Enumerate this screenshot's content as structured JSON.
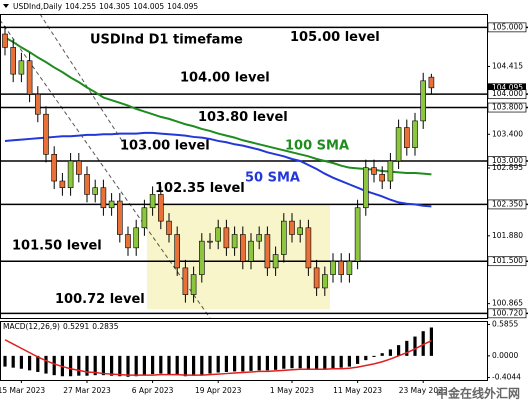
{
  "chart_data": {
    "type": "candlestick",
    "symbol": "USDInd,Daily",
    "title": "USDInd D1 timefame",
    "watermark": "中金在线外汇网",
    "categories": [
      null,
      null,
      "15 Mar 2023",
      null,
      null,
      null,
      null,
      null,
      null,
      null,
      "27 Mar 2023",
      null,
      null,
      null,
      null,
      null,
      null,
      null,
      "6 Apr 2023",
      null,
      null,
      null,
      null,
      null,
      null,
      null,
      "19 Apr 2023",
      null,
      null,
      null,
      null,
      null,
      null,
      null,
      null,
      "1 May 2023",
      null,
      null,
      null,
      null,
      null,
      null,
      null,
      "11 May 2023",
      null,
      null,
      null,
      null,
      null,
      null,
      null,
      "23 May 2023",
      null
    ],
    "open": [
      104.9,
      104.7,
      104.3,
      104.5,
      104.0,
      103.7,
      103.1,
      102.7,
      102.6,
      103.0,
      102.8,
      102.5,
      102.6,
      102.3,
      102.4,
      101.9,
      101.7,
      102.0,
      102.3,
      102.5,
      102.1,
      101.9,
      101.4,
      101.0,
      101.3,
      101.8,
      101.8,
      102.0,
      101.7,
      101.9,
      101.5,
      101.8,
      101.9,
      101.4,
      101.6,
      102.1,
      101.9,
      102.0,
      101.4,
      101.1,
      101.3,
      101.5,
      101.3,
      101.5,
      102.3,
      102.9,
      102.8,
      102.7,
      103.0,
      103.5,
      103.2,
      103.6,
      104.255
    ],
    "high": [
      105.02,
      104.82,
      104.62,
      104.62,
      104.12,
      103.82,
      103.22,
      102.82,
      103.12,
      103.12,
      102.92,
      102.72,
      102.72,
      102.52,
      102.52,
      102.02,
      102.12,
      102.42,
      102.62,
      102.62,
      102.22,
      102.02,
      101.52,
      101.42,
      101.92,
      101.92,
      102.12,
      102.12,
      102.02,
      102.02,
      101.92,
      102.02,
      102.02,
      101.72,
      102.22,
      102.22,
      102.12,
      102.12,
      101.52,
      101.42,
      101.62,
      101.62,
      101.62,
      102.42,
      103.02,
      103.02,
      102.92,
      103.12,
      103.62,
      103.62,
      103.72,
      104.32,
      104.305
    ],
    "low": [
      104.58,
      104.18,
      104.18,
      103.88,
      103.58,
      102.98,
      102.58,
      102.48,
      102.48,
      102.68,
      102.38,
      102.38,
      102.18,
      102.18,
      101.78,
      101.58,
      101.58,
      101.88,
      102.18,
      101.98,
      101.78,
      101.28,
      100.88,
      100.88,
      101.18,
      101.68,
      101.68,
      101.58,
      101.58,
      101.38,
      101.38,
      101.68,
      101.28,
      101.28,
      101.48,
      101.78,
      101.78,
      101.28,
      100.98,
      100.98,
      101.18,
      101.18,
      101.18,
      101.38,
      102.18,
      102.68,
      102.58,
      102.58,
      102.88,
      103.08,
      103.08,
      103.48,
      104.005
    ],
    "close": [
      104.7,
      104.3,
      104.5,
      104.0,
      103.7,
      103.1,
      102.7,
      102.6,
      103.0,
      102.8,
      102.5,
      102.6,
      102.3,
      102.4,
      101.9,
      101.7,
      102.0,
      102.3,
      102.5,
      102.1,
      101.9,
      101.4,
      101.0,
      101.3,
      101.8,
      101.8,
      102.0,
      101.7,
      101.9,
      101.5,
      101.8,
      101.9,
      101.4,
      101.6,
      102.1,
      101.9,
      102.0,
      101.4,
      101.1,
      101.3,
      101.5,
      101.3,
      101.5,
      102.3,
      102.9,
      102.8,
      102.7,
      103.0,
      103.5,
      103.2,
      103.6,
      104.2,
      104.095
    ],
    "up_color": "#8cc63f",
    "down_color": "#e8713a",
    "series": [
      {
        "name": "100 SMA",
        "color": "#1e8c1e",
        "values": [
          104.85,
          104.78,
          104.7,
          104.63,
          104.55,
          104.48,
          104.4,
          104.33,
          104.25,
          104.18,
          104.1,
          104.03,
          103.95,
          103.91,
          103.87,
          103.83,
          103.78,
          103.74,
          103.7,
          103.66,
          103.63,
          103.59,
          103.55,
          103.52,
          103.48,
          103.45,
          103.41,
          103.38,
          103.35,
          103.31,
          103.28,
          103.25,
          103.22,
          103.19,
          103.16,
          103.13,
          103.1,
          103.07,
          103.03,
          103.0,
          102.97,
          102.93,
          102.9,
          102.89,
          102.88,
          102.87,
          102.85,
          102.84,
          102.83,
          102.82,
          102.82,
          102.81,
          102.8
        ]
      },
      {
        "name": "50 SMA",
        "color": "#2438d8",
        "values": [
          103.3,
          103.31,
          103.32,
          103.33,
          103.34,
          103.35,
          103.36,
          103.37,
          103.37,
          103.38,
          103.39,
          103.39,
          103.4,
          103.4,
          103.41,
          103.41,
          103.41,
          103.42,
          103.42,
          103.41,
          103.4,
          103.39,
          103.38,
          103.36,
          103.35,
          103.33,
          103.3,
          103.28,
          103.25,
          103.23,
          103.2,
          103.17,
          103.13,
          103.1,
          103.07,
          103.03,
          103.0,
          102.94,
          102.88,
          102.81,
          102.75,
          102.7,
          102.65,
          102.6,
          102.55,
          102.51,
          102.47,
          102.42,
          102.38,
          102.36,
          102.35,
          102.33,
          102.32
        ]
      }
    ],
    "levels": [
      {
        "value": 105.0,
        "label": "105.00 level"
      },
      {
        "value": 104.0,
        "label": "104.00 level"
      },
      {
        "value": 103.8,
        "label": "103.80 level"
      },
      {
        "value": 103.0,
        "label": "103.00 level"
      },
      {
        "value": 102.35,
        "label": "102.35 level"
      },
      {
        "value": 101.5,
        "label": "101.50 level"
      },
      {
        "value": 100.72,
        "label": "100.72 level"
      }
    ],
    "ylim": [
      100.65,
      105.2
    ],
    "yticks": [
      {
        "value": 105.0,
        "label": "105.000"
      },
      {
        "value": 104.415,
        "label": "104.415"
      },
      {
        "value": 104.095,
        "label": "104.095"
      },
      {
        "value": 104.0,
        "label": "104.000"
      },
      {
        "value": 103.8,
        "label": "103.800"
      },
      {
        "value": 103.4,
        "label": "103.400"
      },
      {
        "value": 103.0,
        "label": "103.000"
      },
      {
        "value": 102.895,
        "label": "102.895"
      },
      {
        "value": 102.35,
        "label": "102.350"
      },
      {
        "value": 101.88,
        "label": "101.880"
      },
      {
        "value": 101.5,
        "label": "101.500"
      },
      {
        "value": 100.865,
        "label": "100.865"
      },
      {
        "value": 100.72,
        "label": "100.720"
      }
    ],
    "macd": {
      "label": "MACD(12,26,9)",
      "hist_color": "#000000",
      "signal_color": "#e02020",
      "histogram": [
        -0.2,
        -0.22,
        -0.24,
        -0.27,
        -0.3,
        -0.33,
        -0.36,
        -0.38,
        -0.38,
        -0.37,
        -0.37,
        -0.36,
        -0.36,
        -0.37,
        -0.38,
        -0.39,
        -0.38,
        -0.36,
        -0.34,
        -0.33,
        -0.34,
        -0.36,
        -0.38,
        -0.37,
        -0.35,
        -0.33,
        -0.31,
        -0.3,
        -0.29,
        -0.29,
        -0.28,
        -0.27,
        -0.27,
        -0.26,
        -0.24,
        -0.23,
        -0.23,
        -0.24,
        -0.25,
        -0.24,
        -0.23,
        -0.22,
        -0.2,
        -0.15,
        -0.08,
        -0.02,
        0.05,
        0.12,
        0.2,
        0.28,
        0.36,
        0.46,
        0.5291
      ],
      "signal": [
        0.3,
        0.22,
        0.14,
        0.06,
        -0.02,
        -0.09,
        -0.15,
        -0.2,
        -0.24,
        -0.27,
        -0.3,
        -0.31,
        -0.33,
        -0.34,
        -0.35,
        -0.36,
        -0.36,
        -0.36,
        -0.36,
        -0.35,
        -0.35,
        -0.35,
        -0.36,
        -0.36,
        -0.36,
        -0.35,
        -0.34,
        -0.33,
        -0.32,
        -0.31,
        -0.3,
        -0.29,
        -0.29,
        -0.28,
        -0.27,
        -0.26,
        -0.25,
        -0.25,
        -0.25,
        -0.25,
        -0.24,
        -0.24,
        -0.23,
        -0.21,
        -0.18,
        -0.15,
        -0.11,
        -0.06,
        0.0,
        0.06,
        0.13,
        0.21,
        0.2835
      ],
      "ylim": [
        -0.45,
        0.65
      ],
      "yticks": [
        0.5855,
        {
          "value": 0,
          "label": "0.0000"
        },
        -0.4044
      ]
    }
  }
}
